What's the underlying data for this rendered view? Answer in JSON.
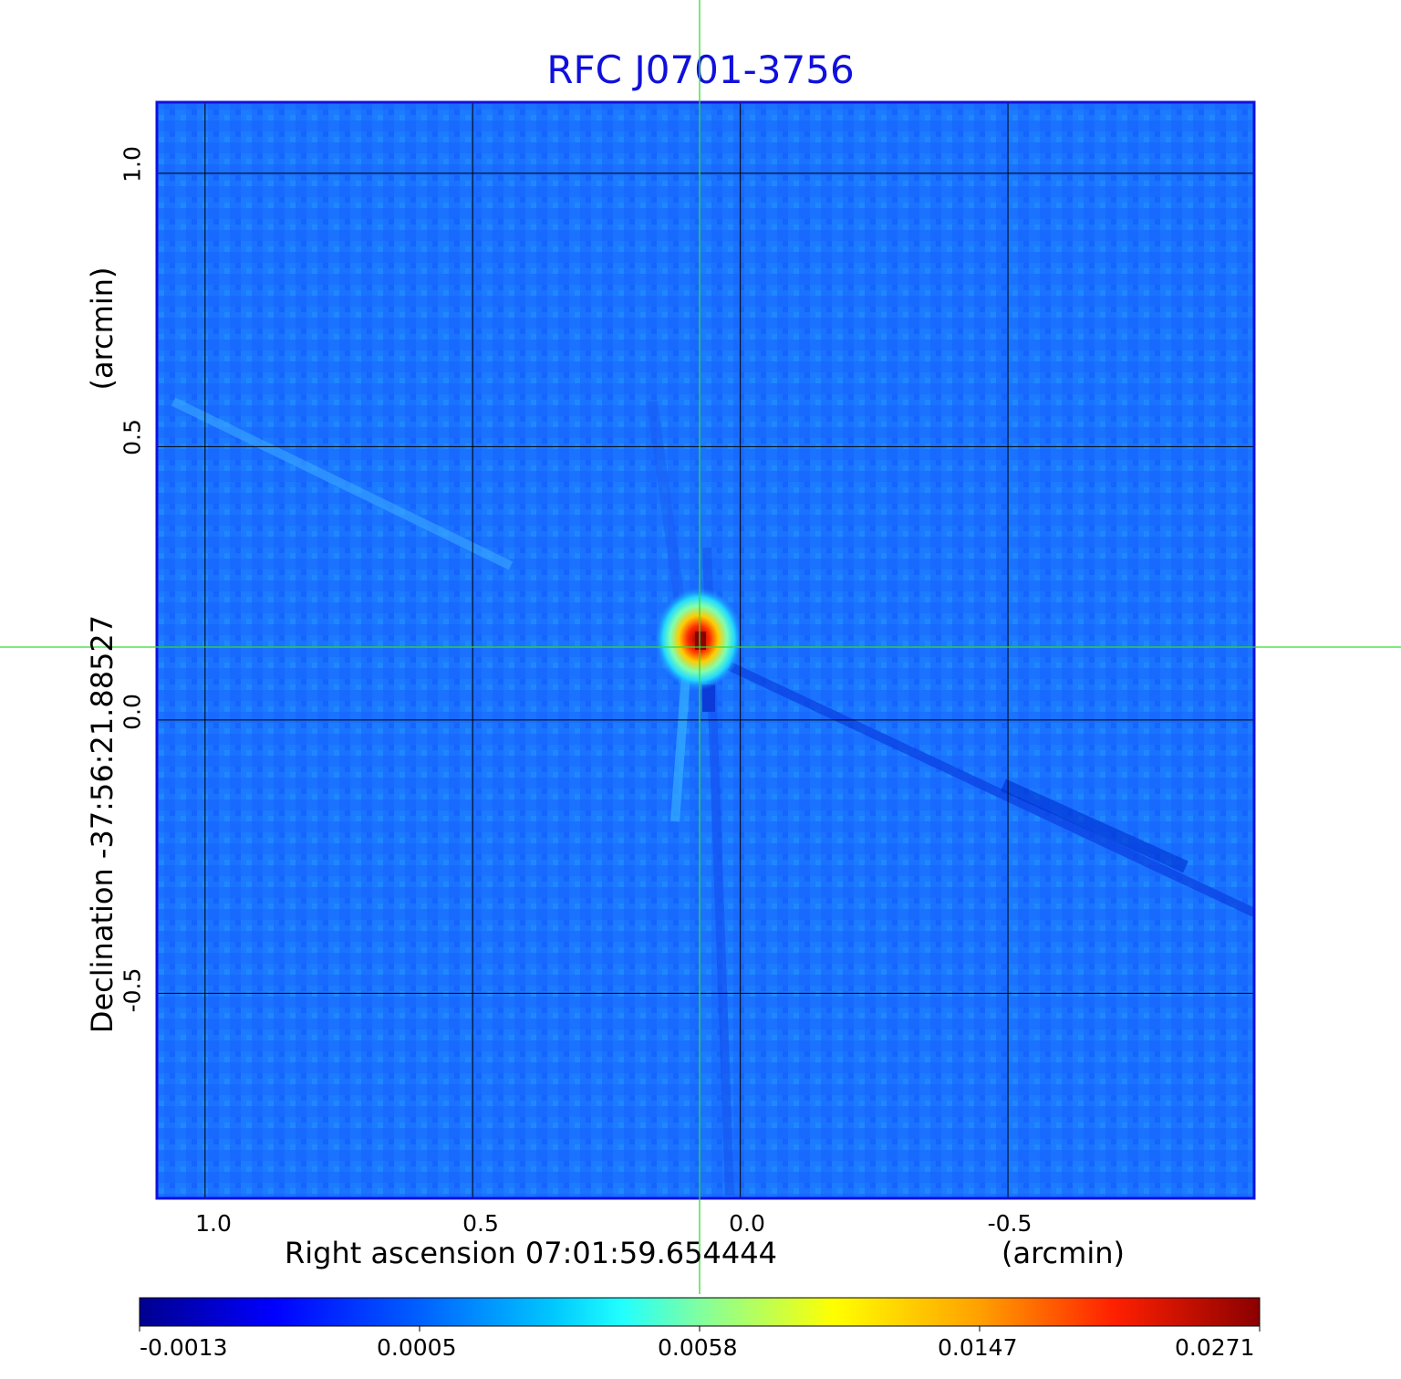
{
  "chart_data": {
    "type": "heatmap",
    "title": "RFC J0701-3756",
    "xlabel": "Right ascension  07:01:59.654444",
    "xunit": "(arcmin)",
    "ylabel": "Declination  -37:56:21.88527",
    "yunit": "(arcmin)",
    "x_ticks": [
      1.0,
      0.5,
      0.0,
      -0.5
    ],
    "x_tick_labels": [
      "1.0",
      "0.5",
      "0.0",
      "-0.5"
    ],
    "y_ticks": [
      1.0,
      0.5,
      0.0,
      -0.5
    ],
    "y_tick_labels": [
      "1.0",
      "0.5",
      "0.0",
      "-0.5"
    ],
    "xlim": [
      1.09,
      -0.96
    ],
    "ylim": [
      -0.875,
      1.13
    ],
    "grid": true,
    "crosshair": {
      "x": 0.075,
      "y": 0.135,
      "color": "#33dd33"
    },
    "peak": {
      "x": 0.08,
      "y": 0.14,
      "value": 0.0271
    },
    "colorbar": {
      "colormap": "jet",
      "tick_labels": [
        "-0.0013",
        "0.0005",
        "0.0058",
        "0.0147",
        "0.0271"
      ],
      "tick_values": [
        -0.0013,
        0.0005,
        0.0058,
        0.0147,
        0.0271
      ]
    },
    "background_color": "#1a6eff",
    "frame_color": "#1010dd"
  }
}
